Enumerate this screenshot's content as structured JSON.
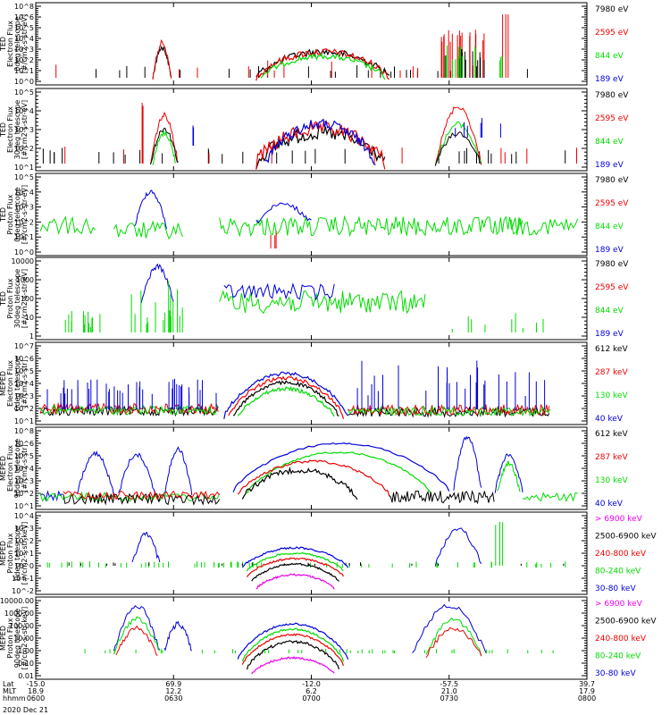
{
  "colors": {
    "black": "#000000",
    "red": "#ee0000",
    "green": "#00dd00",
    "blue": "#0000dd",
    "magenta": "#ee00ee"
  },
  "panels": [
    {
      "ylabel_lines": [
        "TED",
        "Electron Flux",
        "0deg telescope",
        "[#/cm2-s-str-eV]"
      ],
      "y_tick_labels": [
        "10^8",
        "10^6",
        "10^5",
        "10^4",
        "10^3",
        "10^2",
        "10^1",
        "10^0"
      ],
      "legend": [
        {
          "text": "7980 eV",
          "color": "black"
        },
        {
          "text": "2595 eV",
          "color": "red"
        },
        {
          "text": "844 eV",
          "color": "green"
        },
        {
          "text": "189 eV",
          "color": "blue"
        }
      ]
    },
    {
      "ylabel_lines": [
        "TED",
        "Electron Flux",
        "30deg telescope",
        "[#/cm2-s-str-eV]"
      ],
      "y_tick_labels": [
        "10^5",
        "10^4",
        "10^3",
        "10^2",
        "10^1"
      ],
      "legend": [
        {
          "text": "7980 eV",
          "color": "black"
        },
        {
          "text": "2595 eV",
          "color": "red"
        },
        {
          "text": "844 eV",
          "color": "green"
        },
        {
          "text": "189 eV",
          "color": "blue"
        }
      ]
    },
    {
      "ylabel_lines": [
        "TED",
        "Proton Flux",
        "0deg telescope",
        "[#/cm2-s-str-eV]"
      ],
      "y_tick_labels": [
        "10^5",
        "10^4",
        "10^3",
        "10^2",
        "10^1",
        "10^0"
      ],
      "legend": [
        {
          "text": "7980 eV",
          "color": "black"
        },
        {
          "text": "2595 eV",
          "color": "red"
        },
        {
          "text": "844 eV",
          "color": "green"
        },
        {
          "text": "189 eV",
          "color": "blue"
        }
      ]
    },
    {
      "ylabel_lines": [
        "TED",
        "Proton Flux",
        "30deg telescope",
        "[#/cm2-s-str-eV]"
      ],
      "y_tick_labels": [
        "10000",
        "1000",
        "100",
        "10",
        "1"
      ],
      "legend": [
        {
          "text": "7980 eV",
          "color": "black"
        },
        {
          "text": "2595 eV",
          "color": "red"
        },
        {
          "text": "844 eV",
          "color": "green"
        },
        {
          "text": "189 eV",
          "color": "blue"
        }
      ]
    },
    {
      "ylabel_lines": [
        "MEPED",
        "Electron Flux",
        "0deg telescope",
        "[#/cm2-s-str]"
      ],
      "y_tick_labels": [
        "10^7",
        "10^6",
        "10^5",
        "10^4",
        "10^3",
        "10^2",
        "10^1"
      ],
      "legend": [
        {
          "text": "612 keV",
          "color": "black"
        },
        {
          "text": "287 keV",
          "color": "red"
        },
        {
          "text": "130 keV",
          "color": "green"
        },
        {
          "text": "40 keV",
          "color": "blue"
        }
      ]
    },
    {
      "ylabel_lines": [
        "MEPED",
        "Electron Flux",
        "90deg telescope",
        "[#/cm2-s-str]"
      ],
      "y_tick_labels": [
        "10^8",
        "10^6",
        "10^5",
        "10^4",
        "10^3",
        "10^2",
        "10^1"
      ],
      "legend": [
        {
          "text": "612 keV",
          "color": "black"
        },
        {
          "text": "287 keV",
          "color": "red"
        },
        {
          "text": "130 keV",
          "color": "green"
        },
        {
          "text": "40 keV",
          "color": "blue"
        }
      ]
    },
    {
      "ylabel_lines": [
        "MEPED",
        "Proton Flux",
        "0deg telescope",
        "[#/cm2-s-str-keV]"
      ],
      "y_tick_labels": [
        "10^4",
        "10^3",
        "10^2",
        "10^1",
        "10^0",
        "10^-1",
        "10^-2"
      ],
      "legend": [
        {
          "text": "> 6900 keV",
          "color": "magenta"
        },
        {
          "text": "2500-6900 keV",
          "color": "black"
        },
        {
          "text": "240-800 keV",
          "color": "red"
        },
        {
          "text": "80-240 keV",
          "color": "green"
        },
        {
          "text": "30-80 keV",
          "color": "blue"
        }
      ]
    },
    {
      "ylabel_lines": [
        "MEPED",
        "Proton Flux",
        "90deg telescope",
        "[#/cm2-s-str-keV]"
      ],
      "y_tick_labels": [
        "10000.00",
        "1000.00",
        "100.00",
        "10.00",
        "1.00",
        "0.10",
        "0.01"
      ],
      "legend": [
        {
          "text": "> 6900 keV",
          "color": "magenta"
        },
        {
          "text": "2500-6900 keV",
          "color": "black"
        },
        {
          "text": "240-800 keV",
          "color": "red"
        },
        {
          "text": "80-240 keV",
          "color": "green"
        },
        {
          "text": "30-80 keV",
          "color": "blue"
        }
      ]
    }
  ],
  "x_axis": {
    "row_labels": [
      "Lat",
      "MLT",
      "hhmm"
    ],
    "ticks": [
      {
        "lat": "-15.0",
        "mlt": "18.9",
        "hhmm": "0600"
      },
      {
        "lat": "69.9",
        "mlt": "12.2",
        "hhmm": "0630"
      },
      {
        "lat": "-12.0",
        "mlt": "6.2",
        "hhmm": "0700"
      },
      {
        "lat": "-57.5",
        "mlt": "21.0",
        "hhmm": "0730"
      },
      {
        "lat": "39.7",
        "mlt": "17.9",
        "hhmm": "0800"
      }
    ],
    "date": "2020 Dec 21"
  },
  "chart_data": {
    "type": "line",
    "x_label": "hhmm",
    "x_range": [
      "0600",
      "0800"
    ],
    "log_y": true,
    "series_summary": [
      {
        "panel": 0,
        "events": [
          "0624-0630 burst",
          "0648-0710 dome",
          "0720-0735 bursts"
        ]
      },
      {
        "panel": 1,
        "events": [
          "0624-0630 burst",
          "0648-0710 dome",
          "0720-0735 bursts"
        ]
      },
      {
        "panel": 2,
        "events": [
          "0600-0620 background",
          "0624-0630 burst",
          "0650-0705 enhancement",
          "0742-0800 background"
        ]
      },
      {
        "panel": 3,
        "events": [
          "0624-0630 burst",
          "0650-0735 enhancement"
        ]
      },
      {
        "panel": 4,
        "events": [
          "0648-0712 radiation belt dome"
        ]
      },
      {
        "panel": 5,
        "events": [
          "0612-0630 horns",
          "0648-0722 radiation belt dome",
          "0740-0750 horns"
        ]
      },
      {
        "panel": 6,
        "events": [
          "0624-0630 burst",
          "0650-0708 dome",
          "0720-0735 bursts"
        ]
      },
      {
        "panel": 7,
        "events": [
          "0620-0630 burst",
          "0650-0708 dome",
          "0720-0735 bursts"
        ]
      }
    ]
  }
}
